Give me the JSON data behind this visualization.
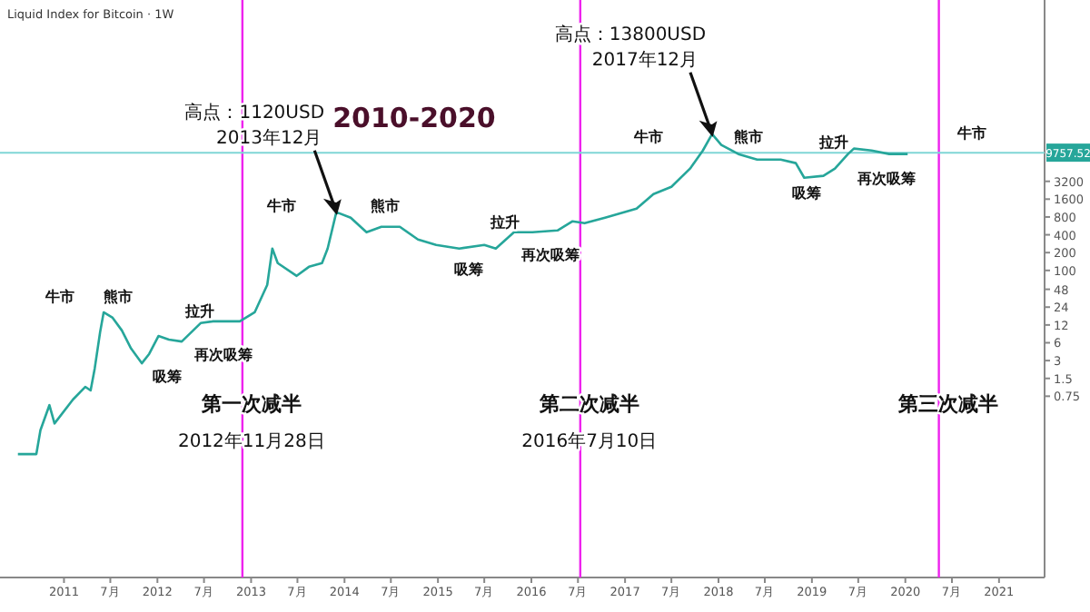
{
  "chart_data": {
    "type": "line",
    "title": "2010-2020",
    "subtitle": "Liquid Index for Bitcoin · 1W",
    "log": true,
    "ylim": [
      0.00065,
      3700000
    ],
    "yticks": [
      0.75,
      1.5,
      3,
      6,
      12,
      24,
      48,
      100,
      200,
      400,
      800,
      1600,
      3200
    ],
    "xlim": [
      "2010-04-26",
      "2021-06-28"
    ],
    "xticks": [
      {
        "value": "2011-01-01",
        "label": "2011"
      },
      {
        "value": "2011-07-01",
        "label": "7月"
      },
      {
        "value": "2012-01-01",
        "label": "2012"
      },
      {
        "value": "2012-07-01",
        "label": "7月"
      },
      {
        "value": "2013-01-01",
        "label": "2013"
      },
      {
        "value": "2013-07-01",
        "label": "7月"
      },
      {
        "value": "2014-01-01",
        "label": "2014"
      },
      {
        "value": "2014-07-01",
        "label": "7月"
      },
      {
        "value": "2015-01-01",
        "label": "2015"
      },
      {
        "value": "2015-07-01",
        "label": "7月"
      },
      {
        "value": "2016-01-01",
        "label": "2016"
      },
      {
        "value": "2016-07-01",
        "label": "7月"
      },
      {
        "value": "2017-01-01",
        "label": "2017"
      },
      {
        "value": "2017-07-01",
        "label": "7月"
      },
      {
        "value": "2018-01-01",
        "label": "2018"
      },
      {
        "value": "2018-07-01",
        "label": "7月"
      },
      {
        "value": "2019-01-01",
        "label": "2019"
      },
      {
        "value": "2019-07-01",
        "label": "7月"
      },
      {
        "value": "2020-01-01",
        "label": "2020"
      },
      {
        "value": "2020-07-01",
        "label": "7月"
      },
      {
        "value": "2021-01-01",
        "label": "2021"
      }
    ],
    "grid": false,
    "line_style": "solid",
    "marker": "none",
    "series": [
      {
        "color": "#26a69a",
        "x": [
          "2010-07-05",
          "2010-09-15",
          "2010-10-01",
          "2010-11-05",
          "2010-11-25",
          "2011-02-05",
          "2011-03-25",
          "2011-04-15",
          "2011-05-01",
          "2011-05-22",
          "2011-06-05",
          "2011-07-10",
          "2011-08-15",
          "2011-09-20",
          "2011-11-01",
          "2011-11-30",
          "2012-01-05",
          "2012-02-15",
          "2012-04-05",
          "2012-06-18",
          "2012-08-05",
          "2012-09-17",
          "2012-11-18",
          "2013-01-15",
          "2013-03-05",
          "2013-03-25",
          "2013-04-15",
          "2013-06-28",
          "2013-08-15",
          "2013-10-05",
          "2013-10-27",
          "2013-11-30",
          "2014-01-25",
          "2014-03-28",
          "2014-05-25",
          "2014-08-05",
          "2014-10-15",
          "2014-12-25",
          "2015-03-25",
          "2015-07-01",
          "2015-08-15",
          "2015-10-25",
          "2016-01-05",
          "2016-04-12",
          "2016-06-10",
          "2016-07-27",
          "2016-10-15",
          "2017-02-15",
          "2017-04-22",
          "2017-07-01",
          "2017-09-12",
          "2017-11-01",
          "2017-12-07",
          "2018-01-12",
          "2018-03-20",
          "2018-06-01",
          "2018-09-01",
          "2018-10-30",
          "2018-12-02",
          "2019-02-15",
          "2019-04-01",
          "2019-05-22",
          "2019-06-14",
          "2019-08-22",
          "2019-10-30",
          "2020-01-10"
        ],
        "values": [
          0.079,
          0.079,
          0.2,
          0.53,
          0.26,
          0.66,
          1.08,
          0.94,
          2.2,
          9,
          19.6,
          15.9,
          9.7,
          4.8,
          2.7,
          3.9,
          7.8,
          6.8,
          6.3,
          12.9,
          13.8,
          13.8,
          13.8,
          19.6,
          57,
          234,
          133,
          81,
          115,
          133,
          234,
          964,
          779,
          441,
          546,
          546,
          333,
          269,
          234,
          269,
          234,
          441,
          441,
          473,
          676,
          627,
          779,
          1107,
          1951,
          2581,
          5250,
          10620,
          20100,
          13150,
          9250,
          7460,
          7460,
          6500,
          3680,
          3970,
          5250,
          9250,
          11450,
          10620,
          9250,
          9250
        ]
      }
    ],
    "ref_lines": [
      {
        "axis": "x",
        "value": "2012-11-28",
        "label": "第一次减半\n2012年11月28日",
        "color": "#ee22ee"
      },
      {
        "axis": "x",
        "value": "2016-07-10",
        "label": "第二次减半\n2016年7月10日",
        "color": "#ee22ee"
      },
      {
        "axis": "x",
        "value": "2020-05-11",
        "label": "第三次减半",
        "color": "#ee22ee"
      },
      {
        "axis": "y",
        "value": 9757.52,
        "label": "9757.52",
        "color": "#7fd6d6"
      }
    ],
    "annotations": [
      {
        "text": "高点：1120USD\n2013年12月",
        "x": "2013-11-30",
        "y": 964
      },
      {
        "text": "高点：13800USD\n2017年12月",
        "x": "2017-12-07",
        "y": 20100
      },
      "牛市",
      "熊市",
      "拉升",
      "吸筹",
      "再次吸筹",
      "牛市",
      "熊市",
      "吸筹",
      "拉升",
      "再次吸筹",
      "牛市",
      "熊市",
      "拉升",
      "吸筹",
      "再次吸筹",
      "牛市"
    ]
  }
}
